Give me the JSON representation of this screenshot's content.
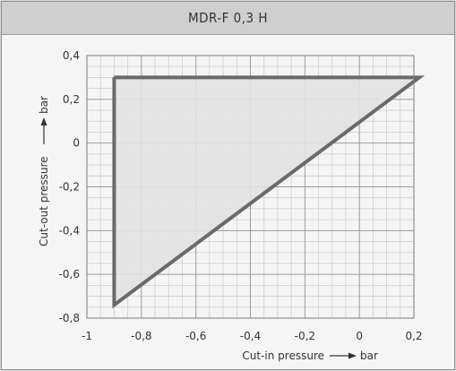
{
  "chart_data": {
    "type": "area",
    "title": "MDR-F 0,3 H",
    "xlabel": "Cut-in pressure",
    "ylabel": "Cut-out pressure",
    "xunit": "bar",
    "yunit": "bar",
    "xlim": [
      -1,
      0.2
    ],
    "ylim": [
      -0.8,
      0.4
    ],
    "x_ticks": [
      -1,
      -0.8,
      -0.6,
      -0.4,
      -0.2,
      0,
      0.2
    ],
    "x_tick_labels": [
      "-1",
      "-0,8",
      "-0,6",
      "-0,4",
      "-0,2",
      "0",
      "0,2"
    ],
    "y_ticks": [
      0.4,
      0.2,
      0,
      -0.2,
      -0.4,
      -0.6,
      -0.8
    ],
    "y_tick_labels": [
      "0,4",
      "0,2",
      "0",
      "-0,2",
      "-0,4",
      "-0,6",
      "-0,8"
    ],
    "grid": true,
    "region": {
      "vertices": [
        {
          "x": -0.9,
          "y": 0.3
        },
        {
          "x": 0.22,
          "y": 0.3
        },
        {
          "x": -0.9,
          "y": -0.74
        }
      ]
    },
    "colors": {
      "region_fill": "#e2e2e2",
      "region_line": "#6a6a6a",
      "grid_major": "#9a9a9a",
      "grid_minor": "#cfcfcf"
    }
  }
}
